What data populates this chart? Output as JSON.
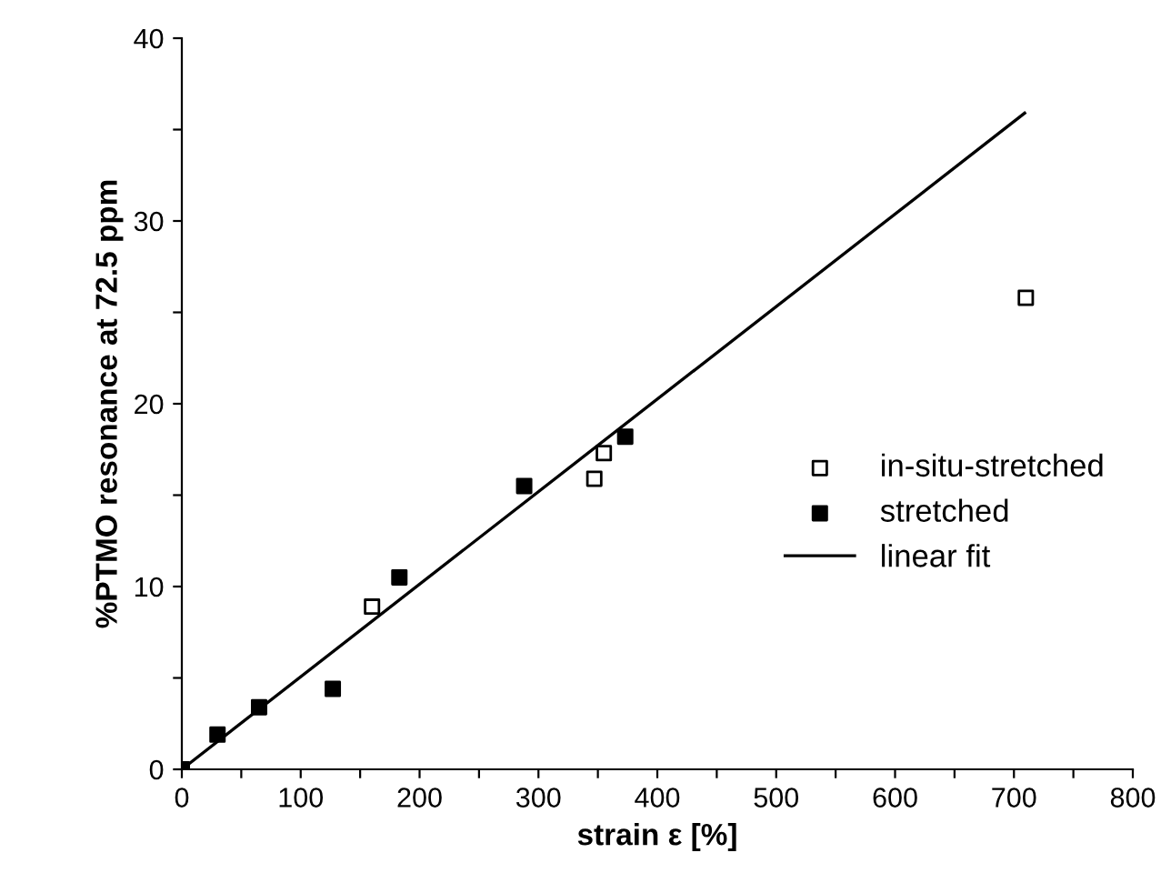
{
  "chart_data": {
    "type": "scatter",
    "xlabel": "strain ε [%]",
    "ylabel": "%PTMO resonance at 72.5 ppm",
    "xlim": [
      0,
      800
    ],
    "ylim": [
      0,
      40
    ],
    "xticks": [
      0,
      {
        "value": 50,
        "label": null
      },
      100,
      {
        "value": 150,
        "label": null
      },
      200,
      {
        "value": 250,
        "label": null
      },
      300,
      {
        "value": 350,
        "label": null
      },
      400,
      {
        "value": 450,
        "label": null
      },
      500,
      {
        "value": 550,
        "label": null
      },
      600,
      {
        "value": 650,
        "label": null
      },
      700,
      {
        "value": 750,
        "label": null
      },
      800
    ],
    "yticks": [
      0,
      {
        "value": 5,
        "label": null
      },
      10,
      {
        "value": 15,
        "label": null
      },
      20,
      {
        "value": 25,
        "label": null
      },
      30,
      {
        "value": 35,
        "label": null
      },
      40
    ],
    "grid": false,
    "legend": "right",
    "series": [
      {
        "name": "in-situ-stretched",
        "color": "#ffffff",
        "marker": "square",
        "x": [
          160,
          347,
          355,
          710
        ],
        "values": [
          8.9,
          15.9,
          17.3,
          25.8
        ]
      },
      {
        "name": "stretched",
        "color": "#000000",
        "marker": "square",
        "x": [
          0,
          30,
          65,
          127,
          183,
          288,
          373
        ],
        "values": [
          0,
          1.9,
          3.4,
          4.4,
          10.5,
          15.5,
          18.2
        ]
      },
      {
        "name": "linear fit",
        "type": "line",
        "color": "#000000",
        "marker": "none",
        "x": [
          0,
          709
        ],
        "values": [
          0,
          35.9
        ]
      }
    ]
  }
}
